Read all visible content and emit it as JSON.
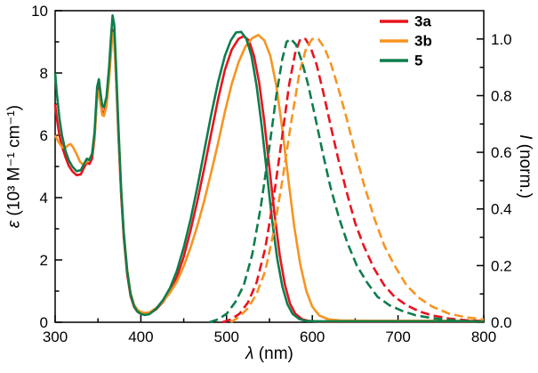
{
  "chart_data": {
    "type": "line",
    "title": "",
    "xlabel": "λ (nm)",
    "xlabel_symbol": "λ",
    "xlabel_rest": " (nm)",
    "ylabel_left": "ε (10³ M⁻¹ cm⁻¹)",
    "ylabel_left_symbol": "ε",
    "ylabel_left_rest": " (10³ M⁻¹ cm⁻¹)",
    "ylabel_right": "I (norm.)",
    "ylabel_right_symbol": "I",
    "ylabel_right_rest": " (norm.)",
    "xlim": [
      300,
      800
    ],
    "y_left_lim": [
      0,
      10
    ],
    "y_right_lim": [
      0,
      1.1
    ],
    "x_major_ticks": [
      300,
      400,
      500,
      600,
      700,
      800
    ],
    "x_tick_labels": [
      "300",
      "400",
      "500",
      "600",
      "700",
      "800"
    ],
    "x_minor_ticks": [
      350,
      450,
      550,
      650,
      750
    ],
    "y_left_major_ticks": [
      0,
      2,
      4,
      6,
      8,
      10
    ],
    "y_left_tick_labels": [
      "0",
      "2",
      "4",
      "6",
      "8",
      "10"
    ],
    "y_left_minor_ticks": [
      1,
      3,
      5,
      7,
      9
    ],
    "y_right_major_ticks": [
      0,
      0.2,
      0.4,
      0.6,
      0.8,
      1.0
    ],
    "y_right_tick_labels": [
      "0.0",
      "0.2",
      "0.4",
      "0.6",
      "0.8",
      "1.0"
    ],
    "y_right_minor_ticks": [
      0.1,
      0.3,
      0.5,
      0.7,
      0.9
    ],
    "grid": false,
    "legend_position": "top-right-inside",
    "series": [
      {
        "id": "3a-absorption",
        "name": "3a absorption",
        "legend": "3a",
        "color": "#e8141e",
        "style": "solid",
        "axis": "left",
        "points": [
          [
            300,
            7.0
          ],
          [
            302,
            6.55
          ],
          [
            305,
            6.0
          ],
          [
            308,
            5.65
          ],
          [
            312,
            5.3
          ],
          [
            316,
            5.02
          ],
          [
            320,
            4.85
          ],
          [
            325,
            4.72
          ],
          [
            330,
            4.75
          ],
          [
            334,
            4.98
          ],
          [
            337,
            5.12
          ],
          [
            340,
            5.08
          ],
          [
            343,
            5.25
          ],
          [
            346,
            5.9
          ],
          [
            349,
            7.3
          ],
          [
            351,
            7.55
          ],
          [
            353,
            7.1
          ],
          [
            355,
            6.72
          ],
          [
            357,
            6.7
          ],
          [
            360,
            7.05
          ],
          [
            363,
            7.95
          ],
          [
            365,
            8.8
          ],
          [
            367,
            9.38
          ],
          [
            369,
            9.1
          ],
          [
            371,
            7.9
          ],
          [
            374,
            5.9
          ],
          [
            377,
            4.1
          ],
          [
            380,
            2.75
          ],
          [
            384,
            1.55
          ],
          [
            388,
            0.85
          ],
          [
            392,
            0.5
          ],
          [
            396,
            0.34
          ],
          [
            400,
            0.27
          ],
          [
            405,
            0.24
          ],
          [
            410,
            0.27
          ],
          [
            418,
            0.42
          ],
          [
            426,
            0.66
          ],
          [
            434,
            0.98
          ],
          [
            442,
            1.45
          ],
          [
            450,
            2.1
          ],
          [
            458,
            2.95
          ],
          [
            466,
            3.9
          ],
          [
            474,
            4.95
          ],
          [
            482,
            6.05
          ],
          [
            490,
            7.15
          ],
          [
            498,
            8.1
          ],
          [
            506,
            8.75
          ],
          [
            514,
            9.1
          ],
          [
            520,
            9.18
          ],
          [
            526,
            9.05
          ],
          [
            532,
            8.55
          ],
          [
            538,
            7.7
          ],
          [
            544,
            6.45
          ],
          [
            550,
            4.95
          ],
          [
            556,
            3.45
          ],
          [
            562,
            2.15
          ],
          [
            568,
            1.2
          ],
          [
            574,
            0.6
          ],
          [
            580,
            0.28
          ],
          [
            588,
            0.1
          ],
          [
            596,
            0.04
          ],
          [
            610,
            0.02
          ],
          [
            640,
            0.02
          ],
          [
            700,
            0.02
          ],
          [
            800,
            0.02
          ]
        ]
      },
      {
        "id": "3b-absorption",
        "name": "3b absorption",
        "legend": "3b",
        "color": "#f79421",
        "style": "solid",
        "axis": "left",
        "points": [
          [
            300,
            6.0
          ],
          [
            304,
            5.78
          ],
          [
            308,
            5.62
          ],
          [
            312,
            5.6
          ],
          [
            315,
            5.68
          ],
          [
            318,
            5.72
          ],
          [
            321,
            5.62
          ],
          [
            325,
            5.4
          ],
          [
            329,
            5.15
          ],
          [
            333,
            5.05
          ],
          [
            336,
            5.12
          ],
          [
            340,
            5.25
          ],
          [
            343,
            5.4
          ],
          [
            346,
            5.95
          ],
          [
            349,
            7.2
          ],
          [
            351,
            7.42
          ],
          [
            353,
            7.0
          ],
          [
            355,
            6.65
          ],
          [
            357,
            6.62
          ],
          [
            360,
            6.95
          ],
          [
            363,
            7.8
          ],
          [
            365,
            8.6
          ],
          [
            367,
            9.28
          ],
          [
            369,
            9.05
          ],
          [
            371,
            7.95
          ],
          [
            374,
            6.05
          ],
          [
            377,
            4.25
          ],
          [
            380,
            2.9
          ],
          [
            384,
            1.7
          ],
          [
            388,
            0.95
          ],
          [
            392,
            0.57
          ],
          [
            396,
            0.4
          ],
          [
            400,
            0.33
          ],
          [
            405,
            0.3
          ],
          [
            410,
            0.32
          ],
          [
            418,
            0.46
          ],
          [
            426,
            0.68
          ],
          [
            434,
            0.95
          ],
          [
            442,
            1.3
          ],
          [
            450,
            1.8
          ],
          [
            458,
            2.4
          ],
          [
            466,
            3.1
          ],
          [
            474,
            3.9
          ],
          [
            482,
            4.8
          ],
          [
            490,
            5.75
          ],
          [
            498,
            6.75
          ],
          [
            506,
            7.65
          ],
          [
            514,
            8.35
          ],
          [
            522,
            8.85
          ],
          [
            530,
            9.12
          ],
          [
            537,
            9.22
          ],
          [
            544,
            9.05
          ],
          [
            551,
            8.55
          ],
          [
            558,
            7.6
          ],
          [
            565,
            6.2
          ],
          [
            572,
            4.6
          ],
          [
            579,
            3.05
          ],
          [
            586,
            1.85
          ],
          [
            593,
            1.0
          ],
          [
            600,
            0.5
          ],
          [
            608,
            0.22
          ],
          [
            618,
            0.1
          ],
          [
            632,
            0.06
          ],
          [
            660,
            0.05
          ],
          [
            700,
            0.05
          ],
          [
            800,
            0.05
          ]
        ]
      },
      {
        "id": "5-absorption",
        "name": "5 absorption",
        "legend": "5",
        "color": "#0e7d4c",
        "style": "solid",
        "axis": "left",
        "points": [
          [
            300,
            8.0
          ],
          [
            302,
            7.35
          ],
          [
            305,
            6.55
          ],
          [
            308,
            6.0
          ],
          [
            312,
            5.5
          ],
          [
            316,
            5.2
          ],
          [
            320,
            5.0
          ],
          [
            325,
            4.85
          ],
          [
            330,
            4.88
          ],
          [
            334,
            5.1
          ],
          [
            337,
            5.25
          ],
          [
            340,
            5.2
          ],
          [
            343,
            5.4
          ],
          [
            346,
            6.1
          ],
          [
            349,
            7.55
          ],
          [
            351,
            7.8
          ],
          [
            353,
            7.35
          ],
          [
            355,
            6.95
          ],
          [
            357,
            6.9
          ],
          [
            360,
            7.25
          ],
          [
            363,
            8.2
          ],
          [
            365,
            9.1
          ],
          [
            367,
            9.85
          ],
          [
            369,
            9.55
          ],
          [
            371,
            8.3
          ],
          [
            374,
            6.2
          ],
          [
            377,
            4.3
          ],
          [
            380,
            2.9
          ],
          [
            384,
            1.65
          ],
          [
            388,
            0.9
          ],
          [
            392,
            0.52
          ],
          [
            396,
            0.35
          ],
          [
            400,
            0.27
          ],
          [
            405,
            0.23
          ],
          [
            410,
            0.26
          ],
          [
            418,
            0.44
          ],
          [
            426,
            0.72
          ],
          [
            434,
            1.1
          ],
          [
            442,
            1.65
          ],
          [
            450,
            2.4
          ],
          [
            458,
            3.3
          ],
          [
            466,
            4.35
          ],
          [
            474,
            5.5
          ],
          [
            482,
            6.65
          ],
          [
            490,
            7.7
          ],
          [
            498,
            8.55
          ],
          [
            505,
            9.05
          ],
          [
            511,
            9.3
          ],
          [
            517,
            9.32
          ],
          [
            523,
            9.1
          ],
          [
            529,
            8.55
          ],
          [
            535,
            7.6
          ],
          [
            541,
            6.3
          ],
          [
            547,
            4.8
          ],
          [
            553,
            3.3
          ],
          [
            559,
            2.05
          ],
          [
            565,
            1.15
          ],
          [
            571,
            0.58
          ],
          [
            577,
            0.27
          ],
          [
            585,
            0.1
          ],
          [
            593,
            0.04
          ],
          [
            605,
            0.03
          ],
          [
            640,
            0.03
          ],
          [
            700,
            0.03
          ],
          [
            800,
            0.03
          ]
        ]
      },
      {
        "id": "3a-emission",
        "name": "3a emission",
        "legend": "3a",
        "color": "#e8141e",
        "style": "dashed",
        "axis": "right",
        "points": [
          [
            495,
            0.0
          ],
          [
            505,
            0.01
          ],
          [
            515,
            0.03
          ],
          [
            525,
            0.07
          ],
          [
            535,
            0.14
          ],
          [
            545,
            0.26
          ],
          [
            555,
            0.44
          ],
          [
            565,
            0.66
          ],
          [
            573,
            0.84
          ],
          [
            580,
            0.95
          ],
          [
            586,
            1.0
          ],
          [
            592,
            1.0
          ],
          [
            598,
            0.97
          ],
          [
            605,
            0.91
          ],
          [
            613,
            0.81
          ],
          [
            621,
            0.7
          ],
          [
            630,
            0.58
          ],
          [
            640,
            0.46
          ],
          [
            650,
            0.35
          ],
          [
            660,
            0.27
          ],
          [
            672,
            0.19
          ],
          [
            684,
            0.13
          ],
          [
            696,
            0.09
          ],
          [
            710,
            0.06
          ],
          [
            725,
            0.038
          ],
          [
            740,
            0.024
          ],
          [
            760,
            0.013
          ],
          [
            780,
            0.007
          ],
          [
            800,
            0.004
          ]
        ]
      },
      {
        "id": "3b-emission",
        "name": "3b emission",
        "legend": "3b",
        "color": "#f79421",
        "style": "dashed",
        "axis": "right",
        "points": [
          [
            505,
            0.0
          ],
          [
            515,
            0.02
          ],
          [
            525,
            0.05
          ],
          [
            535,
            0.1
          ],
          [
            545,
            0.18
          ],
          [
            555,
            0.32
          ],
          [
            565,
            0.5
          ],
          [
            575,
            0.7
          ],
          [
            585,
            0.88
          ],
          [
            593,
            0.97
          ],
          [
            600,
            1.0
          ],
          [
            607,
            1.0
          ],
          [
            614,
            0.97
          ],
          [
            622,
            0.91
          ],
          [
            630,
            0.83
          ],
          [
            640,
            0.72
          ],
          [
            650,
            0.6
          ],
          [
            660,
            0.49
          ],
          [
            672,
            0.37
          ],
          [
            684,
            0.27
          ],
          [
            696,
            0.2
          ],
          [
            710,
            0.13
          ],
          [
            725,
            0.085
          ],
          [
            740,
            0.055
          ],
          [
            760,
            0.03
          ],
          [
            780,
            0.017
          ],
          [
            800,
            0.01
          ]
        ]
      },
      {
        "id": "5-emission",
        "name": "5 emission",
        "legend": "5",
        "color": "#0e7d4c",
        "style": "dashed",
        "axis": "right",
        "points": [
          [
            480,
            0.0
          ],
          [
            490,
            0.01
          ],
          [
            500,
            0.03
          ],
          [
            510,
            0.07
          ],
          [
            520,
            0.13
          ],
          [
            530,
            0.24
          ],
          [
            540,
            0.41
          ],
          [
            550,
            0.62
          ],
          [
            558,
            0.8
          ],
          [
            565,
            0.93
          ],
          [
            570,
            0.99
          ],
          [
            575,
            1.0
          ],
          [
            581,
            0.98
          ],
          [
            588,
            0.92
          ],
          [
            595,
            0.84
          ],
          [
            603,
            0.73
          ],
          [
            612,
            0.6
          ],
          [
            621,
            0.48
          ],
          [
            631,
            0.37
          ],
          [
            641,
            0.28
          ],
          [
            652,
            0.2
          ],
          [
            664,
            0.14
          ],
          [
            676,
            0.09
          ],
          [
            690,
            0.06
          ],
          [
            705,
            0.04
          ],
          [
            720,
            0.025
          ],
          [
            740,
            0.014
          ],
          [
            760,
            0.008
          ],
          [
            780,
            0.004
          ],
          [
            800,
            0.002
          ]
        ]
      }
    ]
  },
  "legend": {
    "items": [
      {
        "label": "3a",
        "color": "#e8141e"
      },
      {
        "label": "3b",
        "color": "#f79421"
      },
      {
        "label": "5",
        "color": "#0e7d4c"
      }
    ]
  },
  "colors": {
    "red": "#e8141e",
    "orange": "#f79421",
    "green": "#0e7d4c",
    "axis": "#000000",
    "background": "#ffffff"
  }
}
